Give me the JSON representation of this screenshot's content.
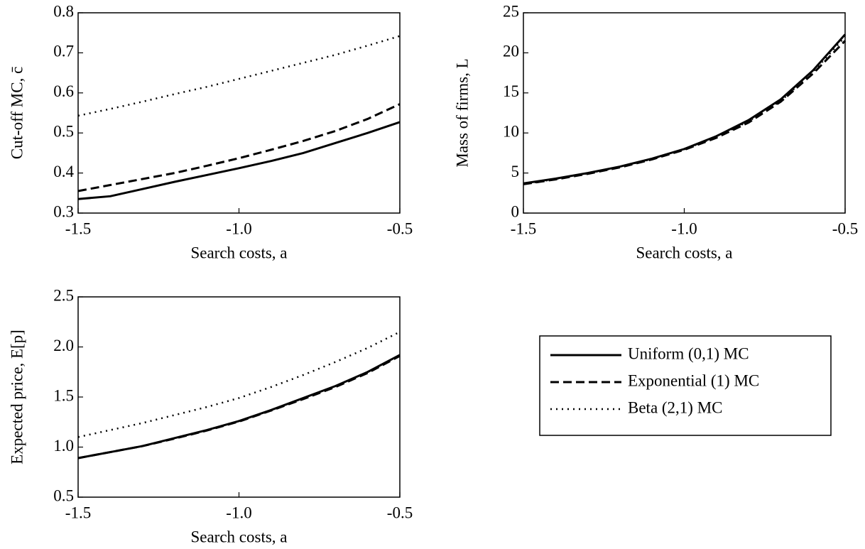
{
  "chart_data": [
    {
      "type": "line",
      "ylabel": "Cut-off MC, c̄",
      "xlabel": "Search costs, a",
      "x": [
        -1.5,
        -1.4,
        -1.3,
        -1.2,
        -1.1,
        -1.0,
        -0.9,
        -0.8,
        -0.7,
        -0.6,
        -0.5
      ],
      "xlim": [
        -1.5,
        -0.5
      ],
      "xticks": [
        -1.5,
        {
          "value": -1,
          "label": "-1.0"
        },
        -0.5
      ],
      "ylim": [
        0.3,
        0.8
      ],
      "yticks": [
        0.3,
        0.4,
        0.5,
        0.6,
        0.7,
        0.8
      ],
      "series": [
        {
          "name": "Uniform (0,1) MC",
          "color": "#000000",
          "style": "solid",
          "values": [
            0.335,
            0.342,
            0.36,
            0.378,
            0.395,
            0.412,
            0.43,
            0.45,
            0.475,
            0.5,
            0.527
          ]
        },
        {
          "name": "Exponential (1) MC",
          "color": "#000000",
          "style": "dashed",
          "values": [
            0.355,
            0.37,
            0.385,
            0.4,
            0.418,
            0.437,
            0.458,
            0.48,
            0.505,
            0.535,
            0.572
          ]
        },
        {
          "name": "Beta (2,1) MC",
          "color": "#000000",
          "style": "dotted",
          "values": [
            0.543,
            0.56,
            0.578,
            0.597,
            0.615,
            0.635,
            0.655,
            0.675,
            0.695,
            0.718,
            0.742
          ]
        }
      ]
    },
    {
      "type": "line",
      "ylabel": "Mass of firms, L",
      "xlabel": "Search costs, a",
      "x": [
        -1.5,
        -1.4,
        -1.3,
        -1.2,
        -1.1,
        -1.0,
        -0.9,
        -0.8,
        -0.7,
        -0.6,
        -0.5
      ],
      "xlim": [
        -1.5,
        -0.5
      ],
      "xticks": [
        -1.5,
        {
          "value": -1,
          "label": "-1.0"
        },
        -0.5
      ],
      "ylim": [
        0,
        25
      ],
      "yticks": [
        0,
        5,
        10,
        15,
        20,
        25
      ],
      "series": [
        {
          "color": "#000000",
          "style": "solid",
          "values": [
            3.7,
            4.3,
            5.0,
            5.8,
            6.8,
            8.0,
            9.6,
            11.6,
            14.2,
            17.8,
            22.3
          ]
        },
        {
          "color": "#000000",
          "style": "dashed",
          "values": [
            3.6,
            4.2,
            4.9,
            5.7,
            6.7,
            7.9,
            9.4,
            11.3,
            13.9,
            17.4,
            21.5
          ]
        },
        {
          "color": "#000000",
          "style": "dotted",
          "values": [
            3.6,
            4.25,
            4.95,
            5.75,
            6.75,
            7.95,
            9.5,
            11.45,
            14.0,
            17.6,
            22.0
          ]
        }
      ]
    },
    {
      "type": "line",
      "ylabel": "Expected price, E[p]",
      "xlabel": "Search costs, a",
      "x": [
        -1.5,
        -1.4,
        -1.3,
        -1.2,
        -1.1,
        -1.0,
        -0.9,
        -0.8,
        -0.7,
        -0.6,
        -0.5
      ],
      "xlim": [
        -1.5,
        -0.5
      ],
      "xticks": [
        -1.5,
        {
          "value": -1,
          "label": "-1.0"
        },
        -0.5
      ],
      "ylim": [
        0.5,
        2.5
      ],
      "yticks": [
        0.5,
        {
          "value": 1,
          "label": "1.0"
        },
        1.5,
        {
          "value": 2,
          "label": "2.0"
        },
        2.5
      ],
      "series": [
        {
          "color": "#000000",
          "style": "solid",
          "values": [
            0.89,
            0.95,
            1.01,
            1.09,
            1.17,
            1.26,
            1.37,
            1.49,
            1.61,
            1.75,
            1.92
          ]
        },
        {
          "color": "#000000",
          "style": "dashed",
          "values": [
            0.89,
            0.95,
            1.01,
            1.085,
            1.165,
            1.255,
            1.365,
            1.48,
            1.6,
            1.74,
            1.91
          ]
        },
        {
          "color": "#000000",
          "style": "dotted",
          "values": [
            1.1,
            1.17,
            1.24,
            1.32,
            1.4,
            1.49,
            1.6,
            1.72,
            1.85,
            1.99,
            2.15
          ]
        }
      ]
    }
  ]
}
